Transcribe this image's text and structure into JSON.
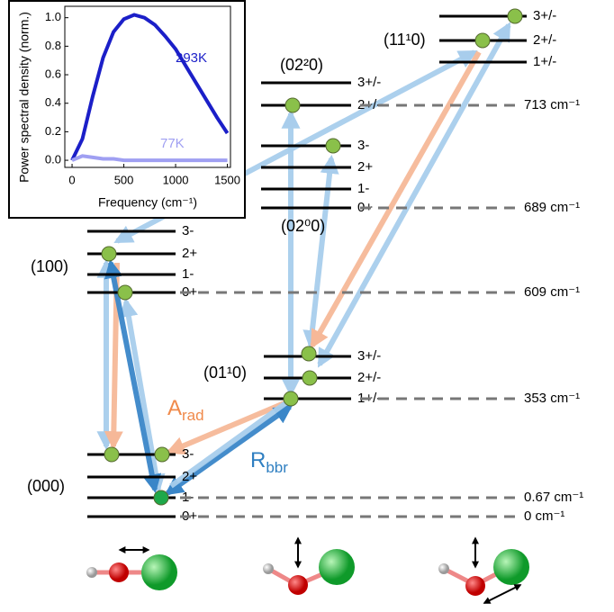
{
  "inset": {
    "type": "line",
    "xlabel": "Frequency (cm⁻¹)",
    "ylabel": "Power spectral density (norm.)",
    "x": [
      0,
      100,
      200,
      300,
      400,
      500,
      600,
      700,
      800,
      900,
      1000,
      1100,
      1200,
      1300,
      1400,
      1500
    ],
    "series": [
      {
        "name": "293K",
        "color": "#1b1fc8",
        "values": [
          0,
          0.15,
          0.45,
          0.72,
          0.9,
          0.99,
          1.02,
          1.0,
          0.95,
          0.87,
          0.78,
          0.66,
          0.54,
          0.42,
          0.3,
          0.19
        ]
      },
      {
        "name": "77K",
        "color": "#9f9ff2",
        "values": [
          0,
          0.03,
          0.02,
          0.01,
          0.01,
          0,
          0,
          0,
          0,
          0,
          0,
          0,
          0,
          0,
          0,
          0
        ]
      }
    ],
    "xlim": [
      -70,
      1530
    ],
    "ylim": [
      -0.05,
      1.08
    ],
    "xticks": [
      0,
      500,
      1000,
      1500
    ],
    "yticks": [
      {
        "value": 0,
        "label": "0.0"
      },
      0.2,
      0.4,
      0.6,
      0.8,
      {
        "value": 1,
        "label": "1.0"
      }
    ]
  },
  "levels": [
    {
      "label": "(000)",
      "states": [
        "3-",
        "2+",
        "1-",
        "0+"
      ]
    },
    {
      "label": "(100)",
      "states": [
        "3-",
        "2+",
        "1-",
        "0+"
      ]
    },
    {
      "label": "(01¹0)",
      "states": [
        "3+/-",
        "2+/-",
        "1+/-"
      ]
    },
    {
      "label": "(02⁰0)",
      "states": [
        "3-",
        "2+",
        "1-",
        "0+"
      ]
    },
    {
      "label": "(02²0)",
      "states": [
        "3+/-",
        "2+/-"
      ]
    },
    {
      "label": "(11¹0)",
      "states": [
        "3+/-",
        "2+/-",
        "1+/-"
      ]
    }
  ],
  "energies": [
    "713 cm⁻¹",
    "689 cm⁻¹",
    "609 cm⁻¹",
    "353 cm⁻¹",
    "0.67 cm⁻¹",
    "0 cm⁻¹"
  ],
  "rates": [
    {
      "main": "A",
      "sub": "rad"
    },
    {
      "main": "R",
      "sub": "bbr"
    }
  ]
}
